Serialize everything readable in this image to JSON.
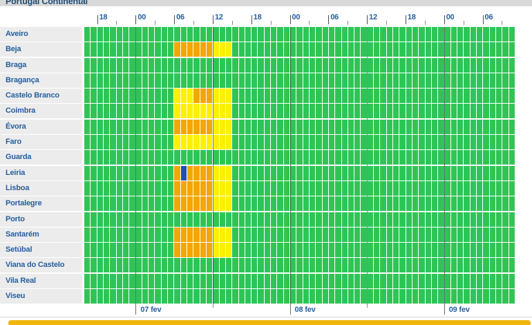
{
  "title": "Portugal Continental",
  "colors": {
    "green": "#2ec556",
    "yellow": "#fdf000",
    "orange": "#f2a705",
    "blue": "#1e50b4",
    "label_text": "#26609e",
    "title_text": "#1f4e79",
    "footer_bar": "#efb510"
  },
  "grid": {
    "total_cells": 67,
    "hours_per_cell": 1,
    "hour_labels": [
      {
        "cell": 2,
        "label": "18"
      },
      {
        "cell": 8,
        "label": "00"
      },
      {
        "cell": 14,
        "label": "06"
      },
      {
        "cell": 20,
        "label": "12"
      },
      {
        "cell": 26,
        "label": "18"
      },
      {
        "cell": 32,
        "label": "00"
      },
      {
        "cell": 38,
        "label": "06"
      },
      {
        "cell": 44,
        "label": "12"
      },
      {
        "cell": 50,
        "label": "18"
      },
      {
        "cell": 56,
        "label": "00"
      },
      {
        "cell": 62,
        "label": "06"
      }
    ],
    "minor_tick_cells": [
      5,
      11,
      17,
      23,
      29,
      35,
      41,
      47,
      53,
      59,
      65
    ],
    "midnight_cells": [
      8,
      32,
      56
    ],
    "noon_cells": [
      20,
      44
    ]
  },
  "dates": [
    {
      "cell": 8,
      "label": "07 fev"
    },
    {
      "cell": 32,
      "label": "08 fev"
    },
    {
      "cell": 56,
      "label": "09 fev"
    }
  ],
  "districts": [
    {
      "name": "Aveiro",
      "segments": []
    },
    {
      "name": "Beja",
      "segments": [
        {
          "start": 14,
          "end": 20,
          "level": "orange"
        },
        {
          "start": 20,
          "end": 23,
          "level": "yellow"
        }
      ]
    },
    {
      "name": "Braga",
      "segments": []
    },
    {
      "name": "Bragança",
      "segments": []
    },
    {
      "name": "Castelo Branco",
      "segments": [
        {
          "start": 14,
          "end": 17,
          "level": "yellow"
        },
        {
          "start": 17,
          "end": 20,
          "level": "orange"
        },
        {
          "start": 20,
          "end": 23,
          "level": "yellow"
        }
      ]
    },
    {
      "name": "Coimbra",
      "segments": [
        {
          "start": 14,
          "end": 23,
          "level": "yellow"
        }
      ]
    },
    {
      "name": "Évora",
      "segments": [
        {
          "start": 14,
          "end": 20,
          "level": "orange"
        },
        {
          "start": 20,
          "end": 23,
          "level": "yellow"
        }
      ]
    },
    {
      "name": "Faro",
      "segments": [
        {
          "start": 14,
          "end": 23,
          "level": "yellow"
        }
      ]
    },
    {
      "name": "Guarda",
      "segments": []
    },
    {
      "name": "Leiria",
      "segments": [
        {
          "start": 14,
          "end": 15,
          "level": "orange"
        },
        {
          "start": 15,
          "end": 16,
          "level": "blue"
        },
        {
          "start": 16,
          "end": 20,
          "level": "orange"
        },
        {
          "start": 20,
          "end": 23,
          "level": "yellow"
        }
      ]
    },
    {
      "name": "Lisboa",
      "segments": [
        {
          "start": 14,
          "end": 20,
          "level": "orange"
        },
        {
          "start": 20,
          "end": 23,
          "level": "yellow"
        }
      ]
    },
    {
      "name": "Portalegre",
      "segments": [
        {
          "start": 14,
          "end": 20,
          "level": "orange"
        },
        {
          "start": 20,
          "end": 23,
          "level": "yellow"
        }
      ]
    },
    {
      "name": "Porto",
      "segments": []
    },
    {
      "name": "Santarém",
      "segments": [
        {
          "start": 14,
          "end": 20,
          "level": "orange"
        },
        {
          "start": 20,
          "end": 23,
          "level": "yellow"
        }
      ]
    },
    {
      "name": "Setúbal",
      "segments": [
        {
          "start": 14,
          "end": 20,
          "level": "orange"
        },
        {
          "start": 20,
          "end": 23,
          "level": "yellow"
        }
      ]
    },
    {
      "name": "Viana do Castelo",
      "segments": []
    },
    {
      "name": "Vila Real",
      "segments": []
    },
    {
      "name": "Viseu",
      "segments": []
    }
  ],
  "chart_data": {
    "type": "heatmap",
    "title": "Portugal Continental",
    "x_axis": {
      "tick_labels": [
        "18",
        "00",
        "06",
        "12",
        "18",
        "00",
        "06",
        "12",
        "18",
        "00",
        "06"
      ],
      "date_labels": [
        "07 fev",
        "08 fev",
        "09 fev"
      ],
      "start": "06 fev 16:00",
      "end": "09 fev 11:00",
      "cell_duration_hours": 1
    },
    "categories": [
      "Aveiro",
      "Beja",
      "Braga",
      "Bragança",
      "Castelo Branco",
      "Coimbra",
      "Évora",
      "Faro",
      "Guarda",
      "Leiria",
      "Lisboa",
      "Portalegre",
      "Porto",
      "Santarém",
      "Setúbal",
      "Viana do Castelo",
      "Vila Real",
      "Viseu"
    ],
    "levels_present": [
      "green",
      "yellow",
      "orange",
      "blue"
    ],
    "default_level": "green",
    "warnings": [
      {
        "district": "Beja",
        "from": "07 fev 06:00",
        "to": "07 fev 12:00",
        "level": "orange"
      },
      {
        "district": "Beja",
        "from": "07 fev 12:00",
        "to": "07 fev 15:00",
        "level": "yellow"
      },
      {
        "district": "Castelo Branco",
        "from": "07 fev 06:00",
        "to": "07 fev 09:00",
        "level": "yellow"
      },
      {
        "district": "Castelo Branco",
        "from": "07 fev 09:00",
        "to": "07 fev 12:00",
        "level": "orange"
      },
      {
        "district": "Castelo Branco",
        "from": "07 fev 12:00",
        "to": "07 fev 15:00",
        "level": "yellow"
      },
      {
        "district": "Coimbra",
        "from": "07 fev 06:00",
        "to": "07 fev 15:00",
        "level": "yellow"
      },
      {
        "district": "Évora",
        "from": "07 fev 06:00",
        "to": "07 fev 12:00",
        "level": "orange"
      },
      {
        "district": "Évora",
        "from": "07 fev 12:00",
        "to": "07 fev 15:00",
        "level": "yellow"
      },
      {
        "district": "Faro",
        "from": "07 fev 06:00",
        "to": "07 fev 15:00",
        "level": "yellow"
      },
      {
        "district": "Leiria",
        "from": "07 fev 06:00",
        "to": "07 fev 07:00",
        "level": "orange"
      },
      {
        "district": "Leiria",
        "from": "07 fev 07:00",
        "to": "07 fev 08:00",
        "level": "blue"
      },
      {
        "district": "Leiria",
        "from": "07 fev 08:00",
        "to": "07 fev 12:00",
        "level": "orange"
      },
      {
        "district": "Leiria",
        "from": "07 fev 12:00",
        "to": "07 fev 15:00",
        "level": "yellow"
      },
      {
        "district": "Lisboa",
        "from": "07 fev 06:00",
        "to": "07 fev 12:00",
        "level": "orange"
      },
      {
        "district": "Lisboa",
        "from": "07 fev 12:00",
        "to": "07 fev 15:00",
        "level": "yellow"
      },
      {
        "district": "Portalegre",
        "from": "07 fev 06:00",
        "to": "07 fev 12:00",
        "level": "orange"
      },
      {
        "district": "Portalegre",
        "from": "07 fev 12:00",
        "to": "07 fev 15:00",
        "level": "yellow"
      },
      {
        "district": "Santarém",
        "from": "07 fev 06:00",
        "to": "07 fev 12:00",
        "level": "orange"
      },
      {
        "district": "Santarém",
        "from": "07 fev 12:00",
        "to": "07 fev 15:00",
        "level": "yellow"
      },
      {
        "district": "Setúbal",
        "from": "07 fev 06:00",
        "to": "07 fev 12:00",
        "level": "orange"
      },
      {
        "district": "Setúbal",
        "from": "07 fev 12:00",
        "to": "07 fev 15:00",
        "level": "yellow"
      }
    ]
  }
}
